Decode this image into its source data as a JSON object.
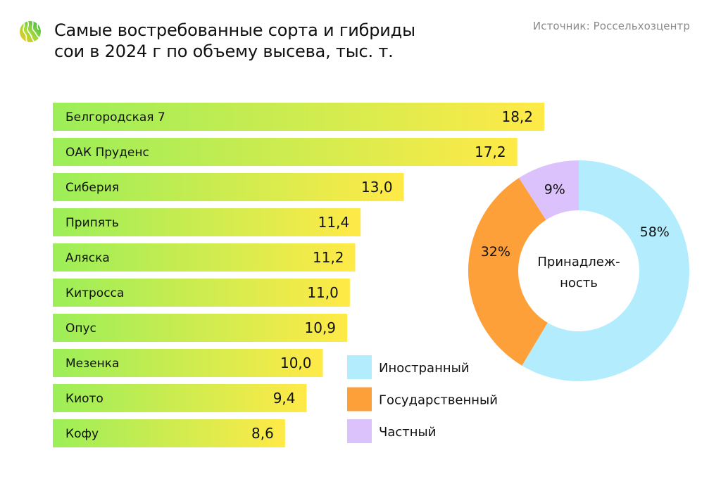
{
  "header": {
    "title_line1": "Самые востребованные сорта и гибриды",
    "title_line2": "сои в 2024 г по объему высева, тыс. т.",
    "source": "Источник: Россельхозцентр",
    "logo_icon": "leaf-swirl-logo-icon"
  },
  "colors": {
    "bar_gradient_start": "#9cee58",
    "bar_gradient_end": "#ffea47",
    "foreign": "#b3ecfd",
    "state": "#fda03a",
    "private": "#dcc2fd"
  },
  "chart_data": [
    {
      "type": "bar",
      "orientation": "horizontal",
      "title": "Самые востребованные сорта и гибриды сои в 2024 г по объему высева, тыс. т.",
      "categories": [
        "Белгородская 7",
        "ОАК Пруденс",
        "Сиберия",
        "Припять",
        "Аляска",
        "Китросса",
        "Опус",
        "Мезенка",
        "Киото",
        "Кофу"
      ],
      "values": [
        18.2,
        17.2,
        13.0,
        11.4,
        11.2,
        11.0,
        10.9,
        10.0,
        9.4,
        8.6
      ],
      "value_labels": [
        "18,2",
        "17,2",
        "13,0",
        "11,4",
        "11,2",
        "11,0",
        "10,9",
        "10,0",
        "9,4",
        "8,6"
      ],
      "xlabel": "",
      "ylabel": "",
      "xlim": [
        0,
        18.2
      ],
      "grid": false
    },
    {
      "type": "pie",
      "variant": "donut",
      "center_label_line1": "Принадлеж-",
      "center_label_line2": "ность",
      "slices": [
        {
          "name": "Иностранный",
          "value": 58,
          "label": "58%",
          "color": "#b3ecfd"
        },
        {
          "name": "Государственный",
          "value": 32,
          "label": "32%",
          "color": "#fda03a"
        },
        {
          "name": "Частный",
          "value": 9,
          "label": "9%",
          "color": "#dcc2fd"
        }
      ],
      "legend_position": "bottom-left"
    }
  ]
}
